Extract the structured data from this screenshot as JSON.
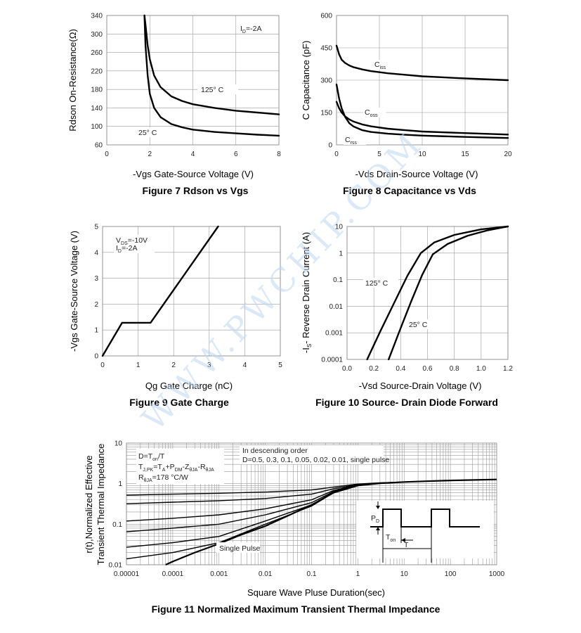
{
  "watermark": "WWW.PWCHIP.COM",
  "chart_data": [
    {
      "id": "fig7",
      "type": "line",
      "caption": "Figure 7 Rdson vs Vgs",
      "xlabel": "-Vgs Gate-Source Voltage (V)",
      "ylabel": "Rdson On-Resistance(Ω)",
      "xlim": [
        0,
        8
      ],
      "ylim": [
        60,
        340
      ],
      "xticks": [
        "0",
        "2",
        "4",
        "6",
        "8"
      ],
      "yticks": [
        "60",
        "100",
        "140",
        "180",
        "220",
        "260",
        "300",
        "340"
      ],
      "grid": true,
      "annotations": [
        {
          "text": "I",
          "sub": "D",
          "after": "=-2A"
        }
      ],
      "series": [
        {
          "name": "125° C",
          "x": [
            1.75,
            1.8,
            1.9,
            2.0,
            2.2,
            2.5,
            3,
            3.5,
            4,
            5,
            6,
            7,
            8
          ],
          "y": [
            340,
            320,
            275,
            245,
            210,
            185,
            165,
            155,
            148,
            140,
            134,
            130,
            126
          ]
        },
        {
          "name": "25° C",
          "x": [
            1.75,
            1.8,
            1.9,
            2.0,
            2.2,
            2.5,
            3,
            3.5,
            4,
            5,
            6,
            7,
            8
          ],
          "y": [
            340,
            275,
            210,
            170,
            140,
            120,
            105,
            98,
            93,
            88,
            85,
            82,
            80
          ]
        }
      ]
    },
    {
      "id": "fig8",
      "type": "line",
      "caption": "Figure 8 Capacitance vs Vds",
      "xlabel": "-Vds Drain-Source Voltage (V)",
      "ylabel": "C Capacitance (pF)",
      "xlim": [
        0,
        20
      ],
      "ylim": [
        0,
        600
      ],
      "xticks": [
        "0",
        "5",
        "10",
        "15",
        "20"
      ],
      "yticks": [
        "0",
        "150",
        "300",
        "450",
        "600"
      ],
      "grid": true,
      "series": [
        {
          "name": "C",
          "sub": "iss",
          "x": [
            0,
            0.3,
            0.6,
            1,
            1.5,
            2,
            3,
            4,
            6,
            8,
            10,
            14,
            17,
            20
          ],
          "y": [
            460,
            420,
            395,
            380,
            368,
            360,
            350,
            342,
            332,
            325,
            318,
            310,
            305,
            300
          ]
        },
        {
          "name": "C",
          "sub": "oss",
          "x": [
            0,
            0.3,
            0.6,
            1,
            1.5,
            2,
            3,
            4,
            6,
            8,
            10,
            14,
            17,
            20
          ],
          "y": [
            200,
            170,
            150,
            132,
            118,
            108,
            95,
            86,
            75,
            68,
            62,
            56,
            52,
            48
          ]
        },
        {
          "name": "C",
          "sub": "rss",
          "x": [
            0,
            0.3,
            0.6,
            1,
            1.5,
            2,
            3,
            4,
            6,
            8,
            10,
            14,
            17,
            20
          ],
          "y": [
            280,
            215,
            170,
            130,
            100,
            85,
            68,
            60,
            52,
            47,
            43,
            38,
            35,
            32
          ]
        }
      ]
    },
    {
      "id": "fig9",
      "type": "line",
      "caption": "Figure 9 Gate Charge",
      "xlabel": "Qg Gate Charge (nC)",
      "ylabel": "-Vgs Gate-Source Voltage (V)",
      "xlim": [
        0,
        5
      ],
      "ylim": [
        0,
        5
      ],
      "xticks": [
        "0",
        "1",
        "2",
        "3",
        "4",
        "5"
      ],
      "yticks": [
        "0",
        "1",
        "2",
        "3",
        "4",
        "5"
      ],
      "grid": true,
      "annotations": [
        {
          "text": "V",
          "sub": "DS",
          "after": "=-10V"
        },
        {
          "text": "I",
          "sub": "D",
          "after": "=-2A"
        }
      ],
      "series": [
        {
          "name": "",
          "x": [
            0,
            0.55,
            0.62,
            1.35,
            3.25
          ],
          "y": [
            0,
            1.28,
            1.28,
            1.28,
            5
          ]
        }
      ]
    },
    {
      "id": "fig10",
      "type": "line",
      "caption": "Figure 10 Source- Drain Diode Forward",
      "xlabel": "-Vsd Source-Drain Voltage (V)",
      "ylabel": "-Is- Reverse Drain Current (A)",
      "ylabel_parts": [
        "-I",
        "S",
        "- Reverse Drain Current (A)"
      ],
      "xlim": [
        0,
        1.2
      ],
      "ylim": [
        0.0001,
        10
      ],
      "yscale": "log",
      "xticks": [
        "0.0",
        "0.2",
        "0.4",
        "0.6",
        "0.8",
        "1.0",
        "1.2"
      ],
      "yticks": [
        "0.0001",
        "0.001",
        "0.01",
        "0.1",
        "1",
        "10"
      ],
      "grid": true,
      "series": [
        {
          "name": "125° C",
          "x": [
            0.15,
            0.25,
            0.35,
            0.45,
            0.55,
            0.65,
            0.8,
            1.0,
            1.2
          ],
          "y": [
            0.0001,
            0.0012,
            0.013,
            0.14,
            1.0,
            2.5,
            4.8,
            7.8,
            10
          ]
        },
        {
          "name": "25° C",
          "x": [
            0.31,
            0.4,
            0.48,
            0.56,
            0.64,
            0.75,
            0.9,
            1.05,
            1.2
          ],
          "y": [
            0.0001,
            0.0015,
            0.016,
            0.15,
            0.9,
            2.2,
            4.5,
            7.2,
            10
          ]
        }
      ]
    },
    {
      "id": "fig11",
      "type": "line",
      "caption": "Figure 11 Normalized Maximum Transient Thermal Impedance",
      "xlabel": "Square Wave Pluse Duration(sec)",
      "ylabel_lines": [
        "r(t),Normalized Effective",
        "Transient Thermal Impedance"
      ],
      "xlim": [
        1e-05,
        1000
      ],
      "ylim": [
        0.01,
        10
      ],
      "xscale": "log",
      "yscale": "log",
      "xticks": [
        "0.00001",
        "0.0001",
        "0.001",
        "0.01",
        "0.1",
        "1",
        "10",
        "100",
        "1000"
      ],
      "yticks": [
        "0.01",
        "0.1",
        "1",
        "10"
      ],
      "grid": true,
      "legend_lines": [
        "In descending order",
        "D=0.5, 0.3, 0.1, 0.05, 0.02, 0.01, single pulse"
      ],
      "formula_lines": [
        {
          "parts": [
            [
              "D=T",
              ""
            ],
            [
              "on",
              "sub"
            ],
            [
              "/T",
              ""
            ]
          ]
        },
        {
          "parts": [
            [
              "T",
              ""
            ],
            [
              "J,PK",
              "sub"
            ],
            [
              "=T",
              ""
            ],
            [
              "A",
              "sub"
            ],
            [
              "+P",
              ""
            ],
            [
              "DM",
              "sub"
            ],
            [
              "-Z",
              ""
            ],
            [
              "θJA",
              "sub"
            ],
            [
              "-R",
              ""
            ],
            [
              "θJA",
              "sub"
            ]
          ]
        },
        {
          "parts": [
            [
              "R",
              ""
            ],
            [
              "θJA",
              "sub"
            ],
            [
              "=178 °C/W",
              ""
            ]
          ]
        }
      ],
      "single_pulse_label": "Single Pulse",
      "inset": {
        "pd": [
          "P",
          "D"
        ],
        "ton": [
          "T",
          "on"
        ],
        "t": "T"
      },
      "series": [
        {
          "name": "D=0.5",
          "x": [
            1e-05,
            0.0001,
            0.001,
            0.01,
            0.1,
            0.3,
            1,
            3,
            10,
            30,
            100,
            1000
          ],
          "y": [
            0.52,
            0.55,
            0.58,
            0.62,
            0.7,
            0.82,
            0.98,
            1.05,
            1.1,
            1.15,
            1.2,
            1.27
          ]
        },
        {
          "name": "D=0.3",
          "x": [
            1e-05,
            0.0001,
            0.001,
            0.01,
            0.1,
            0.3,
            1,
            3,
            10,
            30,
            100,
            1000
          ],
          "y": [
            0.32,
            0.35,
            0.38,
            0.43,
            0.55,
            0.75,
            0.95,
            1.04,
            1.1,
            1.15,
            1.2,
            1.27
          ]
        },
        {
          "name": "D=0.1",
          "x": [
            1e-05,
            0.0001,
            0.001,
            0.01,
            0.1,
            0.3,
            1,
            3,
            10,
            30,
            100,
            1000
          ],
          "y": [
            0.12,
            0.14,
            0.17,
            0.24,
            0.4,
            0.68,
            0.93,
            1.03,
            1.1,
            1.15,
            1.2,
            1.27
          ]
        },
        {
          "name": "D=0.05",
          "x": [
            1e-05,
            0.0001,
            0.001,
            0.01,
            0.1,
            0.3,
            1,
            3,
            10,
            30,
            100,
            1000
          ],
          "y": [
            0.065,
            0.08,
            0.1,
            0.17,
            0.34,
            0.64,
            0.92,
            1.03,
            1.1,
            1.15,
            1.2,
            1.27
          ]
        },
        {
          "name": "D=0.02",
          "x": [
            1e-05,
            0.0001,
            0.001,
            0.01,
            0.1,
            0.3,
            1,
            3,
            10,
            30,
            100,
            1000
          ],
          "y": [
            0.027,
            0.035,
            0.05,
            0.12,
            0.3,
            0.62,
            0.91,
            1.02,
            1.1,
            1.15,
            1.2,
            1.27
          ]
        },
        {
          "name": "D=0.01",
          "x": [
            1e-05,
            0.0001,
            0.001,
            0.01,
            0.1,
            0.3,
            1,
            3,
            10,
            30,
            100,
            1000
          ],
          "y": [
            0.014,
            0.02,
            0.035,
            0.1,
            0.28,
            0.6,
            0.9,
            1.02,
            1.1,
            1.15,
            1.2,
            1.27
          ]
        },
        {
          "name": "single pulse",
          "x": [
            7e-05,
            0.0001,
            0.0003,
            0.001,
            0.003,
            0.01,
            0.03,
            0.1,
            0.3,
            1,
            3,
            10,
            30,
            100,
            1000
          ],
          "y": [
            0.01,
            0.012,
            0.02,
            0.033,
            0.055,
            0.09,
            0.16,
            0.3,
            0.6,
            0.9,
            1.02,
            1.1,
            1.15,
            1.2,
            1.27
          ]
        }
      ]
    }
  ]
}
